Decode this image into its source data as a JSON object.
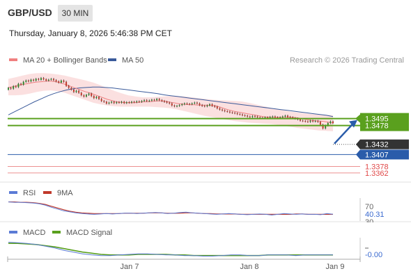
{
  "header": {
    "symbol": "GBP/USD",
    "timeframe": "30 MIN",
    "datetime": "Thursday, January 8, 2026 5:46:38 PM CET"
  },
  "main_legend": [
    {
      "label": "MA 20 + Bollinger Bands",
      "color": "#f08080"
    },
    {
      "label": "MA 50",
      "color": "#3a5a9a"
    }
  ],
  "research_text": "Research © 2026 Trading Central",
  "colors": {
    "resistance": "#5aa01e",
    "support_blue": "#2a5caa",
    "support_red": "#e04848",
    "current": "#333333",
    "bull_candle": "#2d8a2d",
    "bear_candle": "#c0392b",
    "ma20": "#f08080",
    "ma50": "#3a5a9a",
    "rsi": "#5b7bd5",
    "rsi_ma": "#c0392b",
    "macd": "#5b7bd5",
    "macd_signal": "#5aa01e",
    "target_arrow": "#2a5caa"
  },
  "levels": [
    {
      "value": 1.3495,
      "label": "1.3495",
      "kind": "resistance"
    },
    {
      "value": 1.3478,
      "label": "1.3478",
      "kind": "resistance"
    },
    {
      "value": 1.3432,
      "label": "1.3432",
      "kind": "current"
    },
    {
      "value": 1.3407,
      "label": "1.3407",
      "kind": "support_blue"
    },
    {
      "value": 1.3378,
      "label": "1.3378",
      "kind": "support_red"
    },
    {
      "value": 1.3362,
      "label": "1.3362",
      "kind": "support_red"
    }
  ],
  "rsi_panel": {
    "legend": [
      {
        "label": "RSI",
        "color": "#5b7bd5"
      },
      {
        "label": "9MA",
        "color": "#c0392b"
      }
    ],
    "level_70": "70",
    "value": "40.31",
    "level_30": "30"
  },
  "macd_panel": {
    "legend": [
      {
        "label": "MACD",
        "color": "#5b7bd5"
      },
      {
        "label": "MACD Signal",
        "color": "#5aa01e"
      }
    ],
    "value": "-0.00"
  },
  "x_axis": {
    "ticks": [
      "Jan 7",
      "Jan 8",
      "Jan 9"
    ]
  },
  "chart_data": {
    "type": "candlestick",
    "ylim": [
      1.3355,
      1.3615
    ],
    "candles_close": [
      1.357,
      1.3568,
      1.3574,
      1.3572,
      1.358,
      1.3578,
      1.3585,
      1.3588,
      1.3586,
      1.359,
      1.3588,
      1.3592,
      1.359,
      1.3594,
      1.3591,
      1.3588,
      1.359,
      1.3592,
      1.3589,
      1.3586,
      1.3583,
      1.3588,
      1.3585,
      1.3575,
      1.357,
      1.3566,
      1.356,
      1.3563,
      1.3558,
      1.3552,
      1.3549,
      1.3553,
      1.3556,
      1.355,
      1.3545,
      1.3548,
      1.3543,
      1.3538,
      1.3536,
      1.3532,
      1.3534,
      1.3536,
      1.3533,
      1.3535,
      1.3534,
      1.3536,
      1.3533,
      1.3535,
      1.3534,
      1.3536,
      1.3535,
      1.3537,
      1.3536,
      1.3538,
      1.354,
      1.3538,
      1.3539,
      1.3541,
      1.354,
      1.3543,
      1.354,
      1.3538,
      1.3536,
      1.3534,
      1.3532,
      1.3527,
      1.3525,
      1.3526,
      1.3528,
      1.353,
      1.3532,
      1.3531,
      1.353,
      1.3532,
      1.3534,
      1.3532,
      1.3528,
      1.3526,
      1.3525,
      1.3527,
      1.353,
      1.3526,
      1.3524,
      1.352,
      1.3517,
      1.3515,
      1.3513,
      1.3512,
      1.351,
      1.3509,
      1.3508,
      1.3506,
      1.3505,
      1.3503,
      1.3502,
      1.35,
      1.3499,
      1.3501,
      1.35,
      1.3498,
      1.3497,
      1.3496,
      1.3498,
      1.3497,
      1.3499,
      1.35,
      1.3498,
      1.3496,
      1.3498,
      1.35,
      1.3502,
      1.3499,
      1.3498,
      1.3496,
      1.3495,
      1.3493,
      1.349,
      1.3489,
      1.3488,
      1.3487,
      1.349,
      1.3488,
      1.3489,
      1.3487,
      1.348,
      1.3471,
      1.3478,
      1.3484,
      1.3488,
      1.3484
    ],
    "ma20": [
      1.3571,
      1.3573,
      1.3576,
      1.3578,
      1.358,
      1.3582,
      1.3584,
      1.3585,
      1.3586,
      1.3587,
      1.3586,
      1.3584,
      1.3581,
      1.3577,
      1.3573,
      1.3569,
      1.3565,
      1.3561,
      1.3558,
      1.3554,
      1.355,
      1.3546,
      1.3542,
      1.3539,
      1.3536,
      1.3535,
      1.3534,
      1.3534,
      1.3534,
      1.3535,
      1.3536,
      1.3536,
      1.3537,
      1.3538,
      1.3538,
      1.3537,
      1.3535,
      1.3533,
      1.3531,
      1.353,
      1.3529,
      1.3529,
      1.3528,
      1.3528,
      1.3528,
      1.3527,
      1.3526,
      1.3523,
      1.3519,
      1.3516,
      1.3513,
      1.3511,
      1.3509,
      1.3507,
      1.3505,
      1.3503,
      1.3501,
      1.3499,
      1.3498,
      1.3498,
      1.3498,
      1.3498,
      1.3498,
      1.3498,
      1.3497,
      1.3495,
      1.3493,
      1.3491,
      1.349,
      1.3489,
      1.3488,
      1.3486,
      1.3484
    ],
    "ma50": [
      1.3504,
      1.3512,
      1.352,
      1.3528,
      1.3536,
      1.3543,
      1.355,
      1.3556,
      1.3561,
      1.3565,
      1.3568,
      1.357,
      1.3571,
      1.3572,
      1.3572,
      1.3571,
      1.357,
      1.3568,
      1.3566,
      1.3564,
      1.3562,
      1.356,
      1.3558,
      1.3556,
      1.3553,
      1.3551,
      1.3549,
      1.3547,
      1.3545,
      1.3543,
      1.3541,
      1.3539,
      1.3537,
      1.3535,
      1.3533,
      1.3531,
      1.3529,
      1.3527,
      1.3525,
      1.3523,
      1.3521,
      1.3519,
      1.3517,
      1.3515,
      1.3513,
      1.3511,
      1.3509,
      1.3507,
      1.3505,
      1.3503,
      1.35
    ],
    "bb_upper": [
      1.3592,
      1.3596,
      1.36,
      1.3604,
      1.3606,
      1.3606,
      1.3605,
      1.3603,
      1.36,
      1.3596,
      1.3592,
      1.3588,
      1.3583,
      1.3577,
      1.357,
      1.3563,
      1.3557,
      1.3552,
      1.3549,
      1.3547,
      1.3547,
      1.3548,
      1.3549,
      1.355,
      1.355,
      1.3549,
      1.3547,
      1.3545,
      1.3543,
      1.3541,
      1.354,
      1.3539,
      1.3538,
      1.3537,
      1.3534,
      1.353,
      1.3526,
      1.3522,
      1.3518,
      1.3515,
      1.3512,
      1.351,
      1.3508,
      1.3506,
      1.3505,
      1.3504,
      1.3503
    ],
    "bb_lower": [
      1.3552,
      1.3552,
      1.3553,
      1.3556,
      1.356,
      1.3563,
      1.3564,
      1.3562,
      1.3558,
      1.3552,
      1.3546,
      1.354,
      1.3534,
      1.353,
      1.3527,
      1.3525,
      1.3524,
      1.3524,
      1.3524,
      1.3524,
      1.3524,
      1.3523,
      1.3522,
      1.352,
      1.3517,
      1.3513,
      1.3509,
      1.3505,
      1.3501,
      1.3498,
      1.3495,
      1.3492,
      1.3489,
      1.3487,
      1.3485,
      1.3484,
      1.3483,
      1.3482,
      1.348,
      1.3478,
      1.3475,
      1.3472,
      1.347,
      1.3468,
      1.3466,
      1.3465,
      1.3464
    ],
    "target_arrow": {
      "from": 1.3432,
      "to": 1.3495
    },
    "rsi": [
      75,
      74,
      74,
      73,
      72,
      70,
      66,
      60,
      55,
      50,
      47,
      44,
      42,
      41,
      40,
      41,
      42,
      41,
      42,
      43,
      43,
      42,
      43,
      44,
      45,
      44,
      42,
      43,
      45,
      46,
      44,
      43,
      42,
      41,
      40,
      41,
      42,
      41,
      40,
      39,
      40,
      41,
      40,
      38,
      40,
      42,
      41,
      40,
      41,
      40,
      40,
      39,
      42,
      40.31
    ],
    "rsi_ma": [
      75,
      75,
      74,
      74,
      73,
      71,
      68,
      63,
      58,
      53,
      49,
      46,
      44,
      43,
      42,
      42,
      42,
      42,
      42,
      43,
      43,
      43,
      43,
      44,
      44,
      44,
      43,
      43,
      43,
      44,
      44,
      43,
      42,
      42,
      41,
      41,
      41,
      41,
      40,
      40,
      40,
      40,
      40,
      40,
      40,
      40,
      40,
      41,
      41,
      40,
      40,
      40,
      40,
      40
    ],
    "rsi_ylim": [
      25,
      80
    ],
    "macd": [
      0.0018,
      0.0017,
      0.0016,
      0.0014,
      0.0011,
      0.0008,
      0.0004,
      0.0001,
      -0.0002,
      -0.0004,
      -0.0005,
      -0.0005,
      -0.0004,
      -0.0003,
      -0.0002,
      -0.0002,
      -0.0003,
      -0.0004,
      -0.0004,
      -0.0005,
      -0.0005,
      -0.0006,
      -0.0006,
      -0.0005,
      -0.0004,
      -0.0004,
      -0.0005,
      -0.0005,
      -0.0004,
      -0.0004,
      -0.0004,
      -0.0005,
      -0.0004,
      -0.0004,
      -0.0004,
      -0.0004
    ],
    "macd_signal": [
      0.0016,
      0.0016,
      0.0015,
      0.0014,
      0.0012,
      0.001,
      0.0007,
      0.0004,
      0.0001,
      -0.0001,
      -0.0003,
      -0.0004,
      -0.0004,
      -0.0004,
      -0.0003,
      -0.0003,
      -0.0003,
      -0.0003,
      -0.0004,
      -0.0004,
      -0.0005,
      -0.0005,
      -0.0005,
      -0.0005,
      -0.0005,
      -0.0005,
      -0.0005,
      -0.0005,
      -0.0004,
      -0.0004,
      -0.0004,
      -0.0004,
      -0.0004,
      -0.0004,
      -0.0004,
      -0.0004
    ],
    "macd_ylim": [
      -0.0009,
      0.0021
    ]
  }
}
